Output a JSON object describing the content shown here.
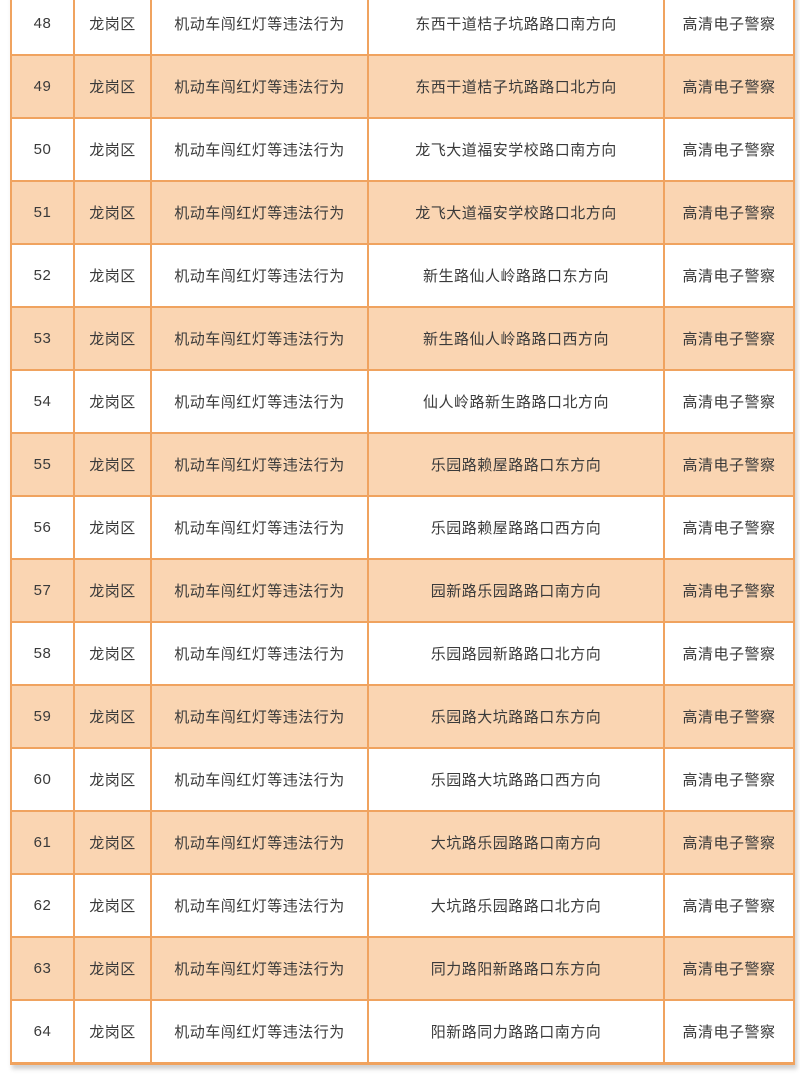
{
  "colors": {
    "border_orange": "#F0A35F",
    "alt_row_peach": "#FAD5B2",
    "text": "#3A3A3A",
    "row_white": "#FFFFFF"
  },
  "table": {
    "rows": [
      [
        "48",
        "龙岗区",
        "机动车闯红灯等违法行为",
        "东西干道桔子坑路路口南方向",
        "高清电子警察"
      ],
      [
        "49",
        "龙岗区",
        "机动车闯红灯等违法行为",
        "东西干道桔子坑路路口北方向",
        "高清电子警察"
      ],
      [
        "50",
        "龙岗区",
        "机动车闯红灯等违法行为",
        "龙飞大道福安学校路口南方向",
        "高清电子警察"
      ],
      [
        "51",
        "龙岗区",
        "机动车闯红灯等违法行为",
        "龙飞大道福安学校路口北方向",
        "高清电子警察"
      ],
      [
        "52",
        "龙岗区",
        "机动车闯红灯等违法行为",
        "新生路仙人岭路路口东方向",
        "高清电子警察"
      ],
      [
        "53",
        "龙岗区",
        "机动车闯红灯等违法行为",
        "新生路仙人岭路路口西方向",
        "高清电子警察"
      ],
      [
        "54",
        "龙岗区",
        "机动车闯红灯等违法行为",
        "仙人岭路新生路路口北方向",
        "高清电子警察"
      ],
      [
        "55",
        "龙岗区",
        "机动车闯红灯等违法行为",
        "乐园路赖屋路路口东方向",
        "高清电子警察"
      ],
      [
        "56",
        "龙岗区",
        "机动车闯红灯等违法行为",
        "乐园路赖屋路路口西方向",
        "高清电子警察"
      ],
      [
        "57",
        "龙岗区",
        "机动车闯红灯等违法行为",
        "园新路乐园路路口南方向",
        "高清电子警察"
      ],
      [
        "58",
        "龙岗区",
        "机动车闯红灯等违法行为",
        "乐园路园新路路口北方向",
        "高清电子警察"
      ],
      [
        "59",
        "龙岗区",
        "机动车闯红灯等违法行为",
        "乐园路大坑路路口东方向",
        "高清电子警察"
      ],
      [
        "60",
        "龙岗区",
        "机动车闯红灯等违法行为",
        "乐园路大坑路路口西方向",
        "高清电子警察"
      ],
      [
        "61",
        "龙岗区",
        "机动车闯红灯等违法行为",
        "大坑路乐园路路口南方向",
        "高清电子警察"
      ],
      [
        "62",
        "龙岗区",
        "机动车闯红灯等违法行为",
        "大坑路乐园路路口北方向",
        "高清电子警察"
      ],
      [
        "63",
        "龙岗区",
        "机动车闯红灯等违法行为",
        "同力路阳新路路口东方向",
        "高清电子警察"
      ],
      [
        "64",
        "龙岗区",
        "机动车闯红灯等违法行为",
        "阳新路同力路路口南方向",
        "高清电子警察"
      ]
    ]
  }
}
